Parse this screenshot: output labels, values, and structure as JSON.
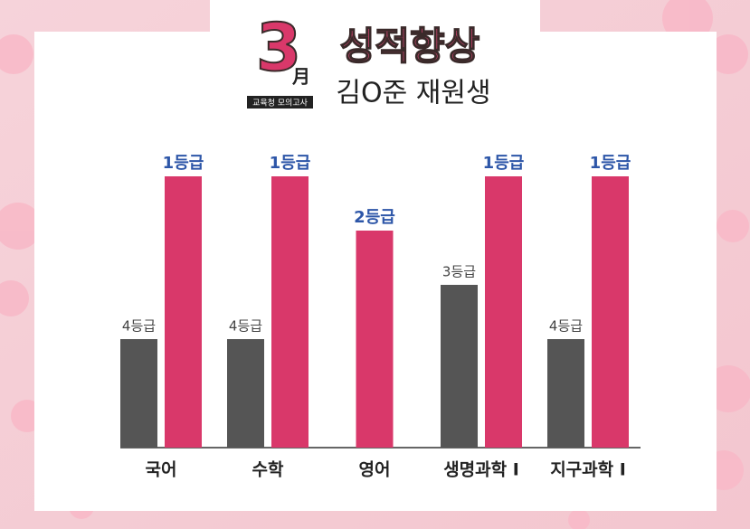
{
  "chart_data": {
    "type": "bar",
    "title": "성적향상",
    "subtitle": "김O준 재원생",
    "annotations": [
      "3",
      "月",
      "교육청 모의고사"
    ],
    "categories": [
      "국어",
      "수학",
      "영어",
      "생명과학 Ⅰ",
      "지구과학 Ⅰ"
    ],
    "series": [
      {
        "color": "#555555",
        "values": [
          4,
          4,
          null,
          3,
          4
        ],
        "value_labels": [
          "4등급",
          "4등급",
          null,
          "3등급",
          "4등급"
        ]
      },
      {
        "color": "#d9386a",
        "values": [
          1,
          1,
          2,
          1,
          1
        ],
        "value_labels": [
          "1등급",
          "1등급",
          "2등급",
          "1등급",
          "1등급"
        ]
      }
    ]
  }
}
